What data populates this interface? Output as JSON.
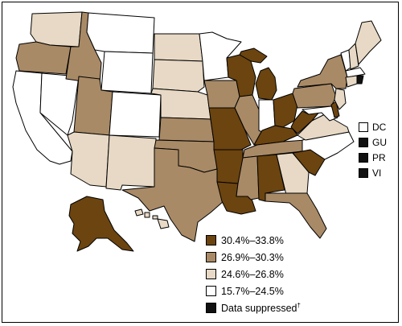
{
  "legend": [
    {
      "label": "30.4%–33.8%",
      "color": "#6b4410"
    },
    {
      "label": "26.9%–30.3%",
      "color": "#a98a66"
    },
    {
      "label": "24.6%–26.8%",
      "color": "#e7d9c5"
    },
    {
      "label": "15.7%–24.5%",
      "color": "#ffffff"
    },
    {
      "label": "Data suppressed",
      "mark": "†",
      "color": "#111111"
    }
  ],
  "territories": [
    {
      "label": "DC",
      "color": "#ffffff"
    },
    {
      "label": "GU",
      "color": "#111111"
    },
    {
      "label": "PR",
      "color": "#111111"
    },
    {
      "label": "VI",
      "color": "#111111"
    }
  ],
  "colors": {
    "dark": "#6b4410",
    "medium": "#a98a66",
    "light": "#e7d9c5",
    "white": "#ffffff",
    "suppressed": "#111111"
  }
}
